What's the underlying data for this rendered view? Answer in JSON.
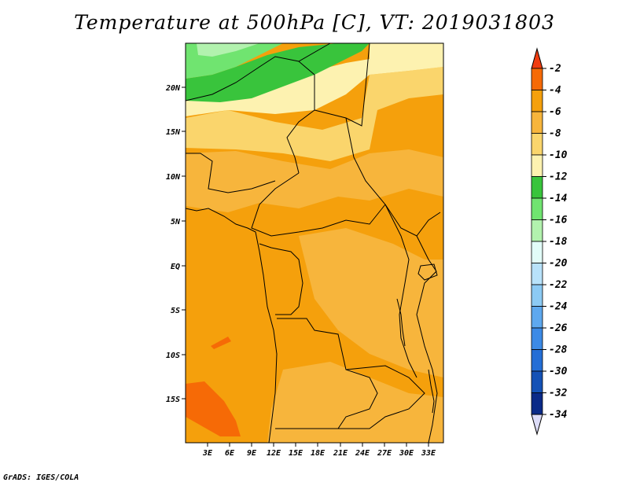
{
  "title": "Temperature at 500hPa [C], VT: 2019031803",
  "footer": "GrADS: IGES/COLA",
  "map": {
    "lat_labels": [
      "20N",
      "15N",
      "10N",
      "5N",
      "EQ",
      "5S",
      "10S",
      "15S"
    ],
    "lon_labels": [
      "3E",
      "6E",
      "9E",
      "12E",
      "15E",
      "18E",
      "21E",
      "24E",
      "27E",
      "30E",
      "33E"
    ]
  },
  "colorbar": {
    "labels": [
      "-2",
      "-4",
      "-6",
      "-8",
      "-10",
      "-12",
      "-14",
      "-16",
      "-18",
      "-20",
      "-22",
      "-24",
      "-26",
      "-28",
      "-30",
      "-32",
      "-34"
    ],
    "colors": [
      "#f03c10",
      "#f66a06",
      "#f5a00c",
      "#f7b53c",
      "#fad56c",
      "#fdf2b0",
      "#39c43c",
      "#70e470",
      "#b2f2ae",
      "#e2fcf8",
      "#b8e2fa",
      "#8ccaf4",
      "#5ea8ee",
      "#3c8ae6",
      "#246ed6",
      "#1452b6",
      "#0a2a88",
      "#0a1470"
    ],
    "top_color": "#f03c10",
    "bottom_color": "#dcdcf8"
  },
  "colors": {
    "warm1": "#f5a00c",
    "warm2": "#f7b53c",
    "light": "#fad56c",
    "pale": "#fdf2b0",
    "green1": "#39c43c",
    "green2": "#70e470",
    "green3": "#b2f2ae",
    "hot": "#f66a06"
  }
}
